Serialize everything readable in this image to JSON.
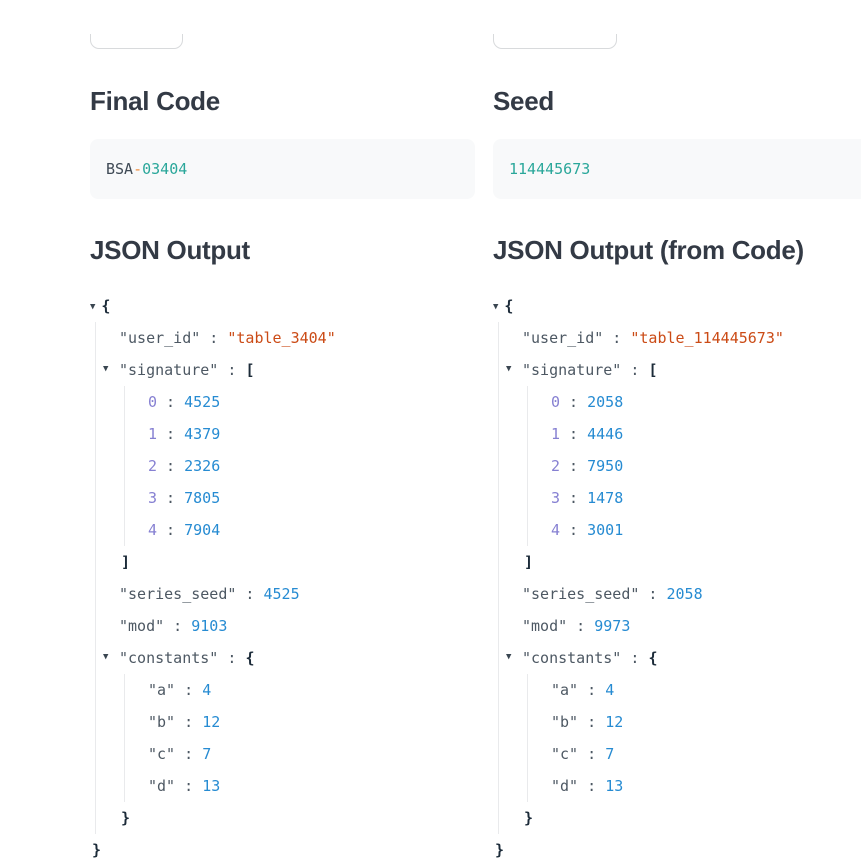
{
  "header": {
    "left_partial_button_label": "",
    "right_partial_button_label": ""
  },
  "left": {
    "code_section": {
      "title": "Final Code",
      "segments": [
        {
          "text": "BSA",
          "style": "plain"
        },
        {
          "text": "-",
          "style": "operator"
        },
        {
          "text": "03404",
          "style": "number"
        }
      ]
    },
    "json_section": {
      "title": "JSON Output"
    }
  },
  "right": {
    "code_section": {
      "title": "Seed",
      "segments": [
        {
          "text": "114445673",
          "style": "number"
        }
      ]
    },
    "json_section": {
      "title": "JSON Output (from Code)"
    }
  },
  "trees": {
    "left": {
      "open": "{",
      "close": "}",
      "children": [
        {
          "key": "user_id",
          "ktype": "key",
          "value": "table_3404",
          "vtype": "string"
        },
        {
          "key": "signature",
          "ktype": "key",
          "open": "[",
          "close": "]",
          "children": [
            {
              "key": "0",
              "ktype": "index",
              "value": "4525",
              "vtype": "number"
            },
            {
              "key": "1",
              "ktype": "index",
              "value": "4379",
              "vtype": "number"
            },
            {
              "key": "2",
              "ktype": "index",
              "value": "2326",
              "vtype": "number"
            },
            {
              "key": "3",
              "ktype": "index",
              "value": "7805",
              "vtype": "number"
            },
            {
              "key": "4",
              "ktype": "index",
              "value": "7904",
              "vtype": "number"
            }
          ]
        },
        {
          "key": "series_seed",
          "ktype": "key",
          "value": "4525",
          "vtype": "number"
        },
        {
          "key": "mod",
          "ktype": "key",
          "value": "9103",
          "vtype": "number"
        },
        {
          "key": "constants",
          "ktype": "key",
          "open": "{",
          "close": "}",
          "children": [
            {
              "key": "a",
              "ktype": "key",
              "value": "4",
              "vtype": "number"
            },
            {
              "key": "b",
              "ktype": "key",
              "value": "12",
              "vtype": "number"
            },
            {
              "key": "c",
              "ktype": "key",
              "value": "7",
              "vtype": "number"
            },
            {
              "key": "d",
              "ktype": "key",
              "value": "13",
              "vtype": "number"
            }
          ]
        }
      ]
    },
    "right": {
      "open": "{",
      "close": "}",
      "children": [
        {
          "key": "user_id",
          "ktype": "key",
          "value": "table_114445673",
          "vtype": "string"
        },
        {
          "key": "signature",
          "ktype": "key",
          "open": "[",
          "close": "]",
          "children": [
            {
              "key": "0",
              "ktype": "index",
              "value": "2058",
              "vtype": "number"
            },
            {
              "key": "1",
              "ktype": "index",
              "value": "4446",
              "vtype": "number"
            },
            {
              "key": "2",
              "ktype": "index",
              "value": "7950",
              "vtype": "number"
            },
            {
              "key": "3",
              "ktype": "index",
              "value": "1478",
              "vtype": "number"
            },
            {
              "key": "4",
              "ktype": "index",
              "value": "3001",
              "vtype": "number"
            }
          ]
        },
        {
          "key": "series_seed",
          "ktype": "key",
          "value": "2058",
          "vtype": "number"
        },
        {
          "key": "mod",
          "ktype": "key",
          "value": "9973",
          "vtype": "number"
        },
        {
          "key": "constants",
          "ktype": "key",
          "open": "{",
          "close": "}",
          "children": [
            {
              "key": "a",
              "ktype": "key",
              "value": "4",
              "vtype": "number"
            },
            {
              "key": "b",
              "ktype": "key",
              "value": "12",
              "vtype": "number"
            },
            {
              "key": "c",
              "ktype": "key",
              "value": "7",
              "vtype": "number"
            },
            {
              "key": "d",
              "ktype": "key",
              "value": "13",
              "vtype": "number"
            }
          ]
        }
      ]
    }
  },
  "palette": {
    "heading": "#333a45",
    "code_plain": "#3f4a55",
    "code_operator": "#ef8c3a",
    "code_number": "#2aa79a",
    "json_key": "#4d5863",
    "json_colon": "#4d5863",
    "json_string": "#cb4b16",
    "json_number": "#268bd2",
    "json_index": "#8680d2",
    "json_brace": "#1c2b39",
    "json_arrow": "#3a4651",
    "guide_line": "#e9eaec"
  }
}
